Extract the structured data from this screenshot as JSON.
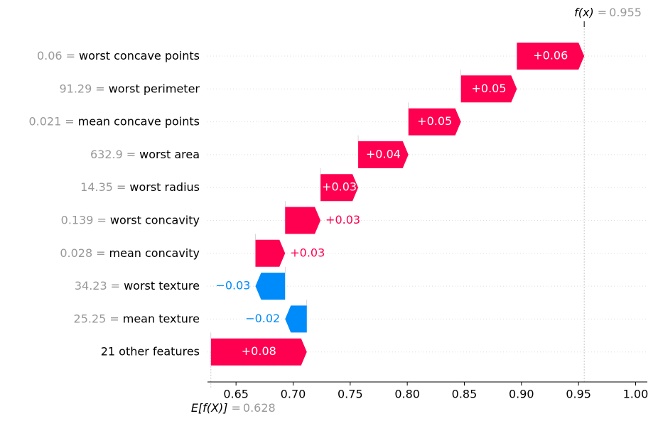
{
  "chart_data": {
    "type": "waterfall",
    "features": [
      "worst concave points",
      "worst perimeter",
      "mean concave points",
      "worst area",
      "worst radius",
      "worst concavity",
      "mean concavity",
      "worst texture",
      "mean texture",
      "21 other features"
    ],
    "feature_values": [
      0.06,
      91.29,
      0.021,
      632.9,
      14.35,
      0.139,
      0.028,
      34.23,
      25.25,
      null
    ],
    "separator": "=",
    "values": [
      0.059,
      0.049,
      0.046,
      0.044,
      0.033,
      0.031,
      0.026,
      -0.026,
      -0.019,
      0.084
    ],
    "value_labels": [
      "+0.06",
      "+0.05",
      "+0.05",
      "+0.04",
      "+0.03",
      "+0.03",
      "+0.03",
      "−0.03",
      "−0.02",
      "+0.08"
    ],
    "base_label": "E[f(X)]",
    "base_value": 0.628,
    "output_label": "f(x)",
    "output_value": 0.955,
    "positive_color": "#ff0051",
    "negative_color": "#008bfb",
    "xlim": [
      0.625,
      1.0103
    ],
    "xticks": [
      0.65,
      {
        "value": 0.7,
        "label": "0.70"
      },
      0.75,
      {
        "value": 0.8,
        "label": "0.80"
      },
      0.85,
      {
        "value": 0.9,
        "label": "0.90"
      },
      0.95,
      {
        "value": 1.0,
        "label": "1.00"
      }
    ]
  }
}
